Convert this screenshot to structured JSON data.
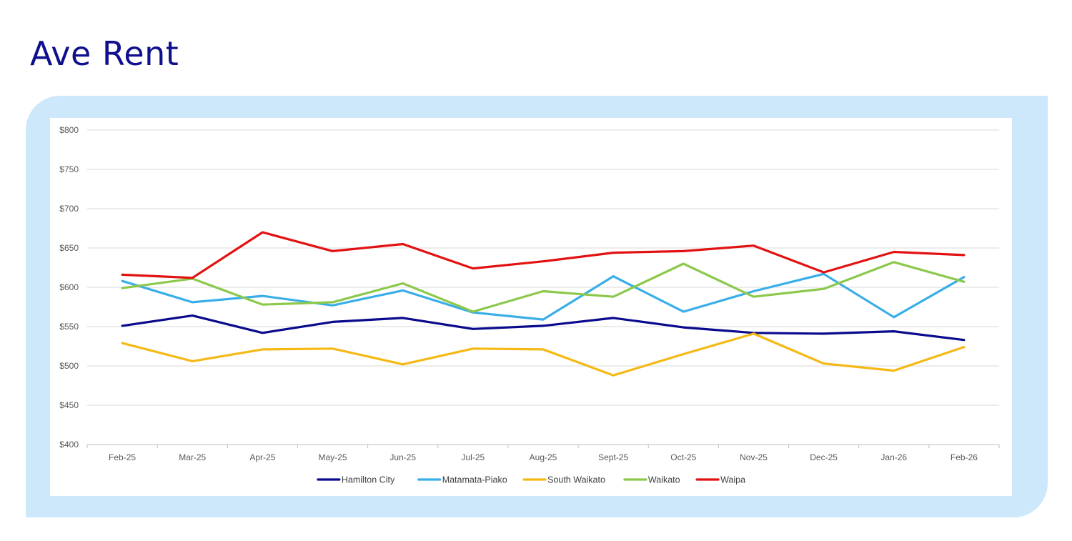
{
  "page": {
    "title": "Ave Rent"
  },
  "chart_data": {
    "type": "line",
    "title": "",
    "xlabel": "",
    "ylabel": "",
    "categories": [
      "Feb-25",
      "Mar-25",
      "Apr-25",
      "May-25",
      "Jun-25",
      "Jul-25",
      "Aug-25",
      "Sept-25",
      "Oct-25",
      "Nov-25",
      "Dec-25",
      "Jan-26",
      "Feb-26"
    ],
    "ylim": [
      400,
      800
    ],
    "yticks": [
      400,
      450,
      500,
      550,
      600,
      650,
      700,
      750,
      800
    ],
    "ytick_labels": [
      "$400",
      "$450",
      "$500",
      "$550",
      "$600",
      "$650",
      "$700",
      "$750",
      "$800"
    ],
    "grid": true,
    "legend_position": "bottom",
    "series": [
      {
        "name": "Hamilton City",
        "color": "#0a0a8c",
        "values": [
          551,
          564,
          542,
          556,
          561,
          547,
          551,
          561,
          549,
          542,
          541,
          544,
          533
        ]
      },
      {
        "name": "Matamata-Piako",
        "color": "#3aaee8",
        "values": [
          608,
          581,
          589,
          577,
          596,
          568,
          559,
          614,
          569,
          595,
          617,
          562,
          613
        ]
      },
      {
        "name": "South Waikato",
        "color": "#f5b915",
        "values": [
          529,
          506,
          521,
          522,
          502,
          522,
          521,
          488,
          515,
          541,
          503,
          494,
          524
        ]
      },
      {
        "name": "Waikato",
        "color": "#8cc84b",
        "values": [
          599,
          611,
          578,
          581,
          605,
          569,
          595,
          588,
          630,
          588,
          598,
          632,
          607
        ]
      },
      {
        "name": "Waipa",
        "color": "#e31212",
        "values": [
          616,
          612,
          670,
          646,
          655,
          624,
          633,
          644,
          646,
          653,
          619,
          645,
          641
        ]
      }
    ]
  }
}
